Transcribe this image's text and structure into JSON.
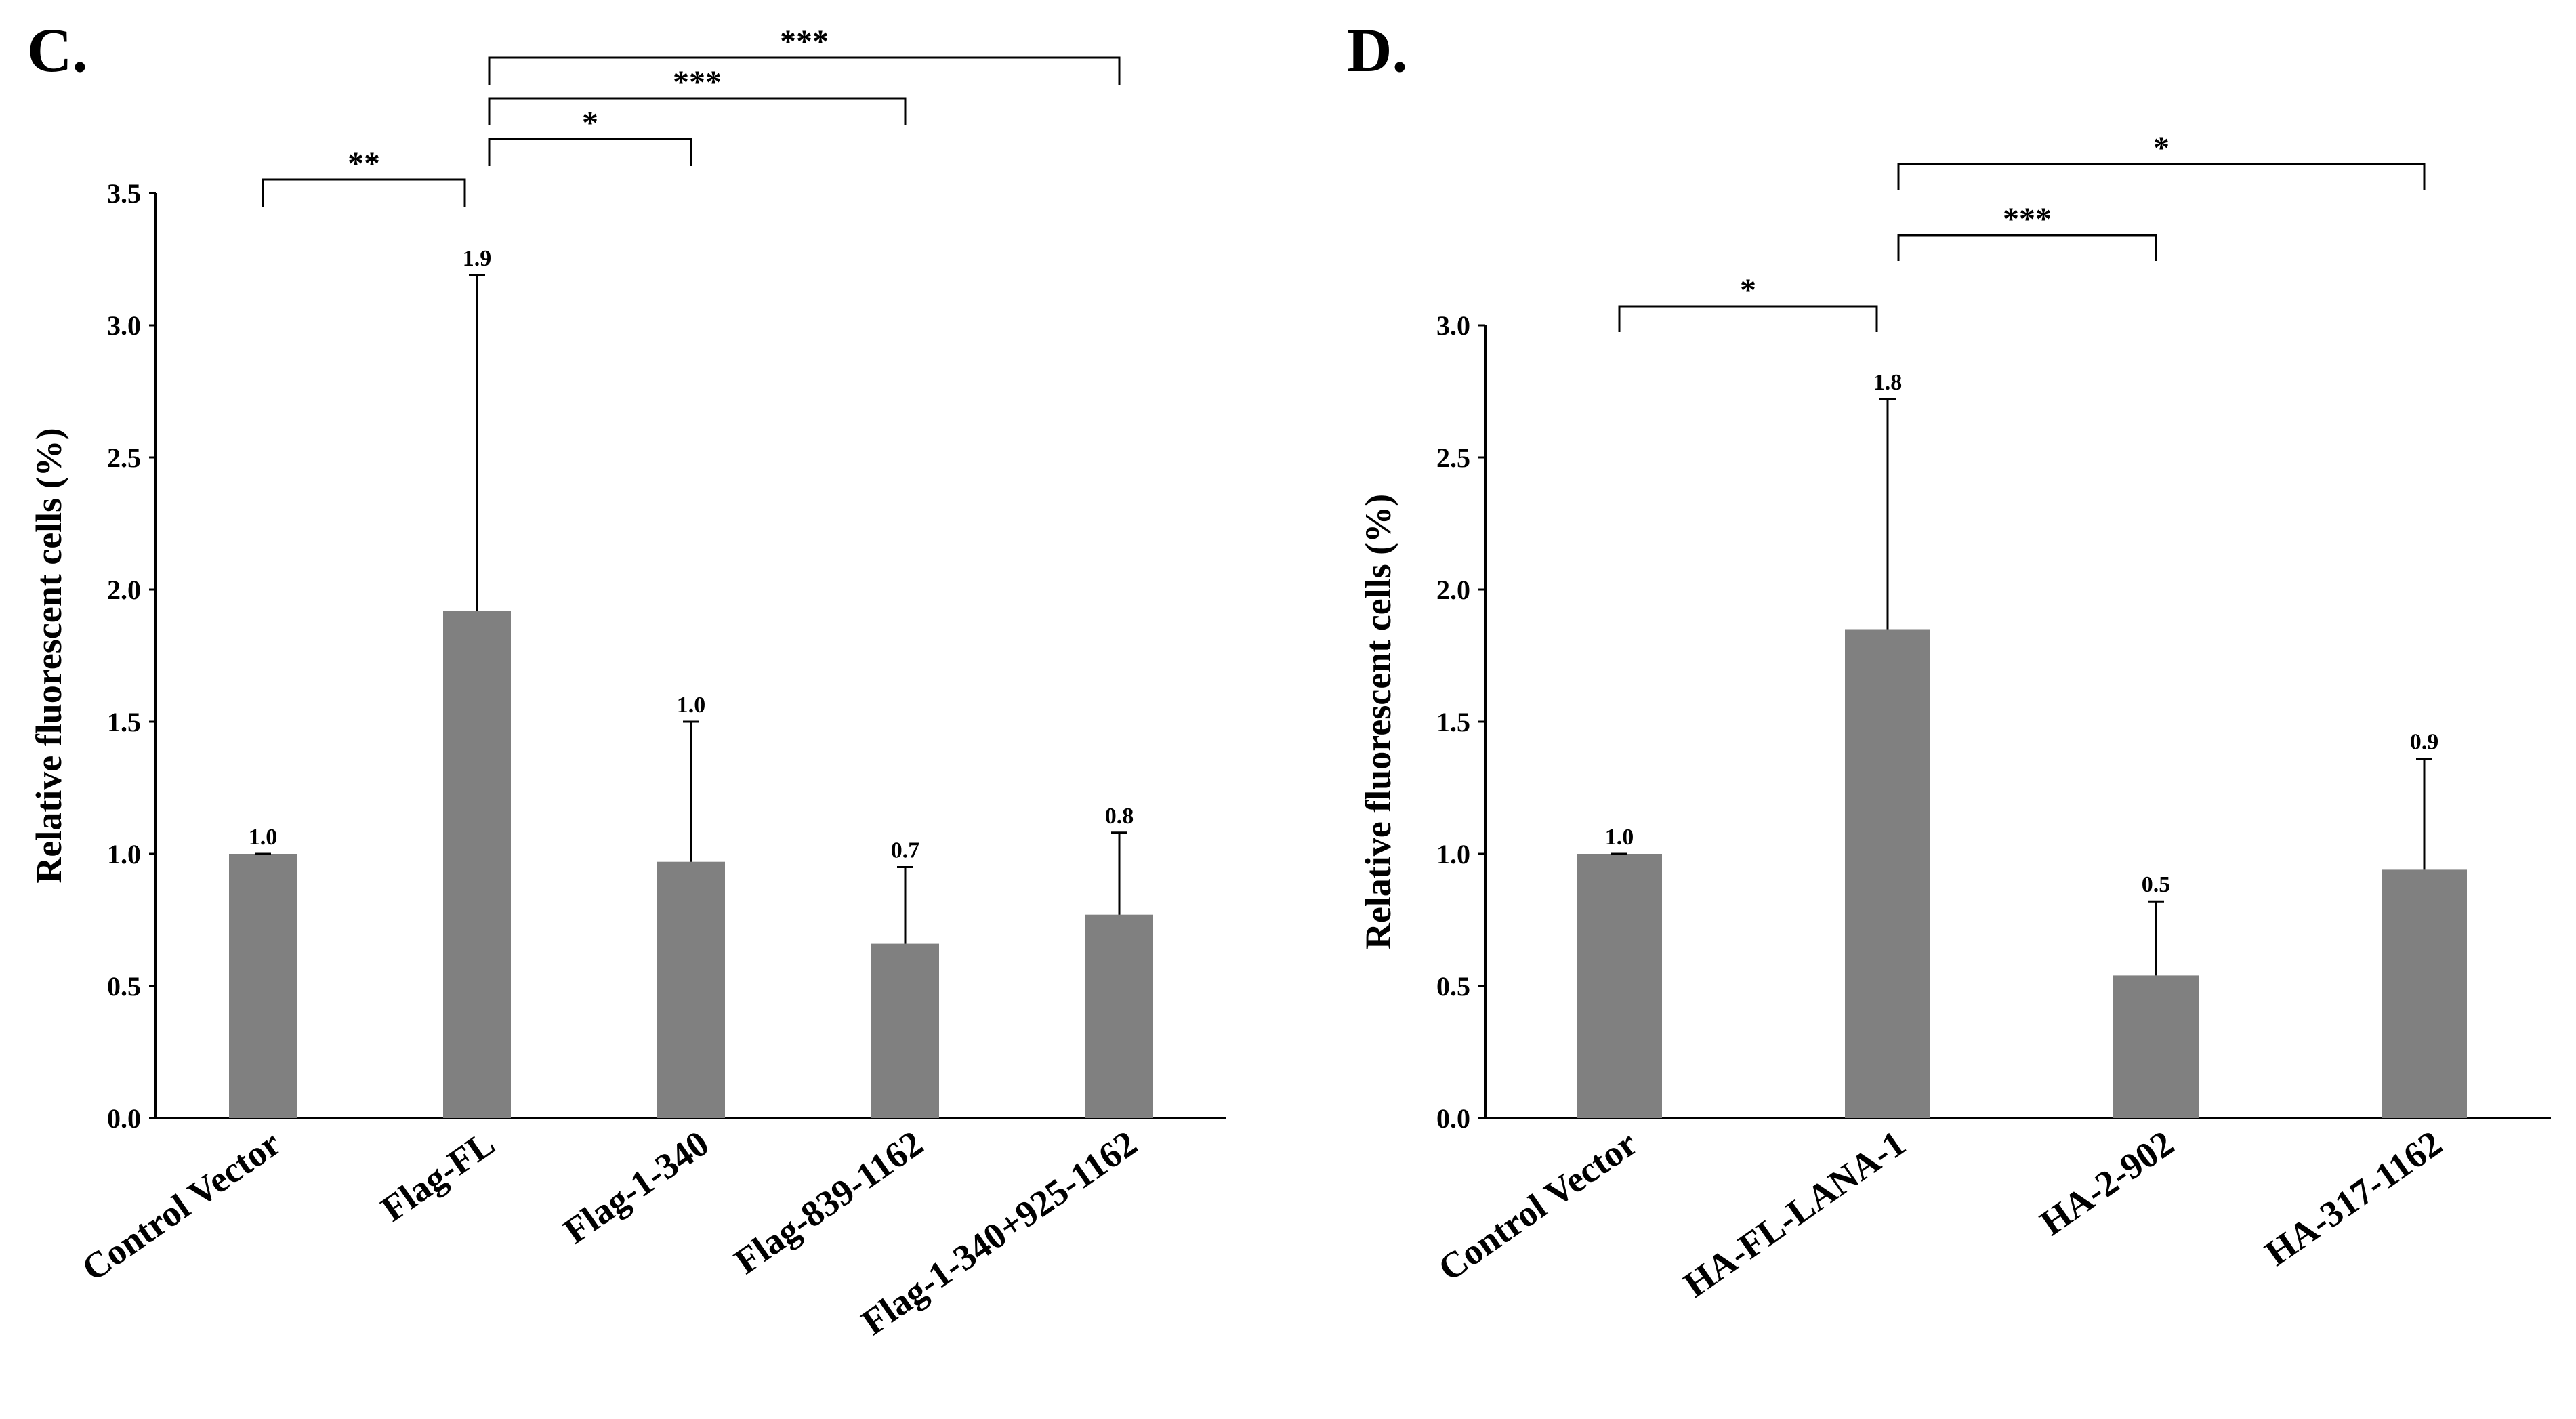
{
  "colors": {
    "bar": "#808080",
    "axis": "#000000",
    "background": "#ffffff"
  },
  "chart_data": [
    {
      "type": "bar",
      "panel": "C.",
      "ylabel": "Relative fluorescent cells (%)",
      "ylim": [
        0,
        3.5
      ],
      "yticks": [
        0.0,
        0.5,
        1.0,
        1.5,
        2.0,
        2.5,
        3.0,
        3.5
      ],
      "ytick_labels": [
        "0.0",
        "0.5",
        "1.0",
        "1.5",
        "2.0",
        "2.5",
        "3.0",
        "3.5"
      ],
      "categories": [
        "Control Vector",
        "Flag-FL",
        "Flag-1-340",
        "Flag-839-1162",
        "Flag-1-340+925-1162"
      ],
      "values": [
        1.0,
        1.92,
        0.97,
        0.66,
        0.77
      ],
      "error_upper": [
        1.0,
        3.19,
        1.5,
        0.95,
        1.08
      ],
      "value_labels": [
        "1.0",
        "1.9",
        "1.0",
        "0.7",
        "0.8"
      ],
      "significance": [
        {
          "from": 0,
          "to": 1,
          "label": "**"
        },
        {
          "from": 1,
          "to": 2,
          "label": "*"
        },
        {
          "from": 1,
          "to": 3,
          "label": "***"
        },
        {
          "from": 1,
          "to": 4,
          "label": "***"
        }
      ]
    },
    {
      "type": "bar",
      "panel": "D.",
      "ylabel": "Relative fluorescent cells (%)",
      "ylim": [
        0,
        3.0
      ],
      "yticks": [
        0.0,
        0.5,
        1.0,
        1.5,
        2.0,
        2.5,
        3.0
      ],
      "ytick_labels": [
        "0.0",
        "0.5",
        "1.0",
        "1.5",
        "2.0",
        "2.5",
        "3.0"
      ],
      "categories": [
        "Control Vector",
        "HA-FL-LANA-1",
        "HA-2-902",
        "HA-317-1162"
      ],
      "values": [
        1.0,
        1.85,
        0.54,
        0.94
      ],
      "error_upper": [
        1.0,
        2.72,
        0.82,
        1.36
      ],
      "value_labels": [
        "1.0",
        "1.8",
        "0.5",
        "0.9"
      ],
      "significance": [
        {
          "from": 0,
          "to": 1,
          "label": "*"
        },
        {
          "from": 1,
          "to": 2,
          "label": "***"
        },
        {
          "from": 1,
          "to": 3,
          "label": "*"
        }
      ]
    }
  ]
}
